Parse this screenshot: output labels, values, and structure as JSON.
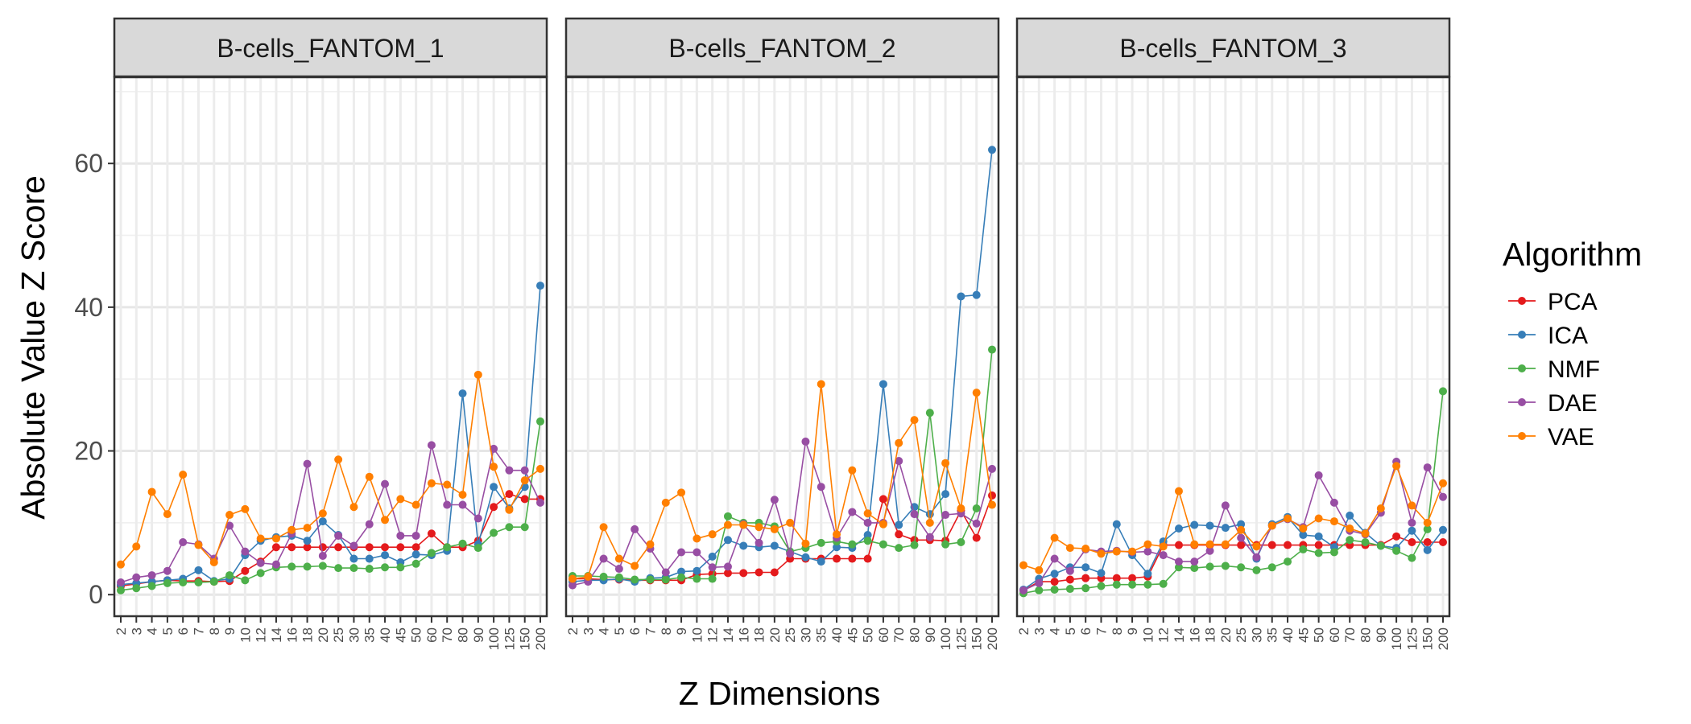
{
  "chart_data": {
    "type": "line",
    "ylabel": "Absolute Value Z Score",
    "xlabel": "Z Dimensions",
    "ylim": [
      -3,
      72
    ],
    "yticks": [
      0,
      20,
      40,
      60
    ],
    "grid": true,
    "legend_position": "right",
    "legend_title": "Algorithm",
    "categories": [
      "2",
      "3",
      "4",
      "5",
      "6",
      "7",
      "8",
      "9",
      "10",
      "12",
      "14",
      "16",
      "18",
      "20",
      "25",
      "30",
      "35",
      "40",
      "45",
      "50",
      "60",
      "70",
      "80",
      "90",
      "100",
      "125",
      "150",
      "200"
    ],
    "series_meta": [
      {
        "name": "PCA",
        "color": "#e41a1c"
      },
      {
        "name": "ICA",
        "color": "#377eb8"
      },
      {
        "name": "NMF",
        "color": "#4daf4a"
      },
      {
        "name": "DAE",
        "color": "#984ea3"
      },
      {
        "name": "VAE",
        "color": "#ff7f00"
      }
    ],
    "panels": [
      {
        "strip": "B-cells_FANTOM_1",
        "series": [
          {
            "name": "PCA",
            "values": [
              1.2,
              1.5,
              1.8,
              2.0,
              1.9,
              1.9,
              1.8,
              1.9,
              3.3,
              4.6,
              6.6,
              6.6,
              6.6,
              6.6,
              6.6,
              6.6,
              6.6,
              6.6,
              6.6,
              6.6,
              8.5,
              6.6,
              6.6,
              7.5,
              12.2,
              14.0,
              13.3,
              13.3
            ]
          },
          {
            "name": "ICA",
            "values": [
              1.4,
              1.6,
              1.8,
              2.0,
              2.2,
              3.4,
              1.9,
              2.2,
              5.5,
              7.5,
              8.0,
              8.2,
              7.5,
              10.2,
              8.3,
              5.0,
              5.0,
              5.5,
              4.5,
              5.6,
              5.5,
              6.1,
              28.0,
              7.0,
              15.0,
              12.0,
              15.0,
              43.0
            ]
          },
          {
            "name": "NMF",
            "values": [
              0.6,
              0.9,
              1.2,
              1.6,
              1.7,
              1.7,
              1.8,
              2.7,
              2.0,
              3.0,
              3.8,
              3.9,
              3.9,
              4.0,
              3.7,
              3.7,
              3.6,
              3.8,
              3.8,
              4.3,
              5.8,
              6.6,
              7.1,
              6.5,
              8.6,
              9.4,
              9.4,
              24.1
            ]
          },
          {
            "name": "DAE",
            "values": [
              1.7,
              2.4,
              2.7,
              3.3,
              7.3,
              7.0,
              5.0,
              9.6,
              6.0,
              4.4,
              4.2,
              8.5,
              18.2,
              5.4,
              8.2,
              6.8,
              9.8,
              15.4,
              8.2,
              8.2,
              20.8,
              12.5,
              12.5,
              10.6,
              20.3,
              17.3,
              17.3,
              12.8
            ]
          },
          {
            "name": "VAE",
            "values": [
              4.2,
              6.7,
              14.3,
              11.2,
              16.7,
              6.9,
              4.5,
              11.1,
              11.9,
              7.8,
              7.8,
              9.0,
              9.3,
              11.3,
              18.8,
              12.2,
              16.4,
              10.4,
              13.3,
              12.5,
              15.5,
              15.3,
              13.9,
              30.6,
              17.8,
              11.8,
              15.9,
              17.5
            ]
          }
        ]
      },
      {
        "strip": "B-cells_FANTOM_2",
        "series": [
          {
            "name": "PCA",
            "values": [
              2.2,
              2.2,
              2.1,
              2.1,
              2.0,
              2.0,
              2.0,
              2.0,
              2.8,
              2.9,
              3.0,
              3.0,
              3.1,
              3.1,
              5.0,
              5.0,
              5.0,
              5.0,
              5.0,
              5.0,
              13.3,
              8.4,
              7.6,
              7.6,
              7.5,
              11.7,
              7.9,
              13.8
            ]
          },
          {
            "name": "ICA",
            "values": [
              1.8,
              2.0,
              2.0,
              2.2,
              1.8,
              2.3,
              2.4,
              3.2,
              3.3,
              5.3,
              7.6,
              6.8,
              6.6,
              6.8,
              6.0,
              5.2,
              4.6,
              6.6,
              6.5,
              8.3,
              29.3,
              9.7,
              12.2,
              11.2,
              14.0,
              41.5,
              41.7,
              61.9
            ]
          },
          {
            "name": "NMF",
            "values": [
              2.6,
              2.6,
              2.5,
              2.4,
              2.1,
              2.1,
              2.1,
              2.4,
              2.2,
              2.2,
              10.9,
              10.0,
              10.0,
              9.5,
              6.0,
              6.5,
              7.2,
              7.4,
              7.0,
              7.5,
              7.0,
              6.5,
              6.9,
              25.3,
              7.0,
              7.3,
              12.0,
              34.1
            ]
          },
          {
            "name": "DAE",
            "values": [
              1.3,
              1.8,
              5.0,
              3.6,
              9.1,
              6.4,
              3.1,
              5.9,
              5.9,
              3.8,
              3.9,
              9.8,
              7.2,
              13.2,
              5.7,
              21.3,
              15.0,
              7.9,
              11.5,
              10.0,
              10.0,
              18.6,
              11.2,
              8.0,
              11.1,
              11.3,
              9.9,
              17.5
            ]
          },
          {
            "name": "VAE",
            "values": [
              2.2,
              2.5,
              9.4,
              5.0,
              4.0,
              7.0,
              12.8,
              14.2,
              7.8,
              8.4,
              9.7,
              9.7,
              9.4,
              9.1,
              10.0,
              7.1,
              29.3,
              8.4,
              17.3,
              11.3,
              9.8,
              21.1,
              24.3,
              10.0,
              18.3,
              12.0,
              28.1,
              12.5
            ]
          }
        ]
      },
      {
        "strip": "B-cells_FANTOM_3",
        "series": [
          {
            "name": "PCA",
            "values": [
              0.6,
              1.8,
              1.8,
              2.1,
              2.3,
              2.3,
              2.3,
              2.3,
              2.5,
              6.9,
              6.9,
              6.9,
              6.9,
              6.9,
              6.9,
              6.9,
              6.9,
              6.9,
              6.9,
              6.9,
              6.9,
              6.9,
              6.9,
              6.9,
              8.1,
              7.3,
              7.3,
              7.3
            ]
          },
          {
            "name": "ICA",
            "values": [
              0.7,
              2.2,
              2.9,
              3.8,
              3.8,
              3.0,
              9.8,
              5.5,
              2.9,
              7.4,
              9.2,
              9.7,
              9.6,
              9.3,
              9.8,
              5.0,
              9.8,
              10.8,
              8.3,
              8.1,
              6.6,
              11.0,
              8.6,
              6.8,
              6.5,
              8.9,
              6.2,
              9.0
            ]
          },
          {
            "name": "NMF",
            "values": [
              0.2,
              0.6,
              0.7,
              0.8,
              0.9,
              1.2,
              1.4,
              1.4,
              1.4,
              1.5,
              3.8,
              3.7,
              3.9,
              4.0,
              3.8,
              3.4,
              3.8,
              4.6,
              6.3,
              5.8,
              5.9,
              7.6,
              7.3,
              6.8,
              6.1,
              5.1,
              9.1,
              28.3
            ]
          },
          {
            "name": "DAE",
            "values": [
              0.6,
              1.6,
              5.0,
              3.3,
              6.3,
              6.0,
              6.1,
              5.9,
              6.0,
              5.5,
              4.6,
              4.6,
              6.1,
              12.4,
              7.9,
              5.2,
              9.6,
              10.5,
              9.4,
              16.6,
              12.8,
              8.9,
              8.4,
              11.4,
              18.5,
              10.0,
              17.7,
              13.6
            ]
          },
          {
            "name": "VAE",
            "values": [
              4.1,
              3.4,
              7.9,
              6.5,
              6.4,
              5.7,
              6.0,
              6.0,
              7.0,
              6.7,
              14.4,
              7.0,
              7.0,
              7.0,
              9.0,
              6.7,
              9.6,
              10.6,
              9.2,
              10.6,
              10.2,
              9.2,
              8.5,
              12.0,
              17.9,
              12.4,
              10.0,
              15.5
            ]
          }
        ]
      }
    ]
  }
}
